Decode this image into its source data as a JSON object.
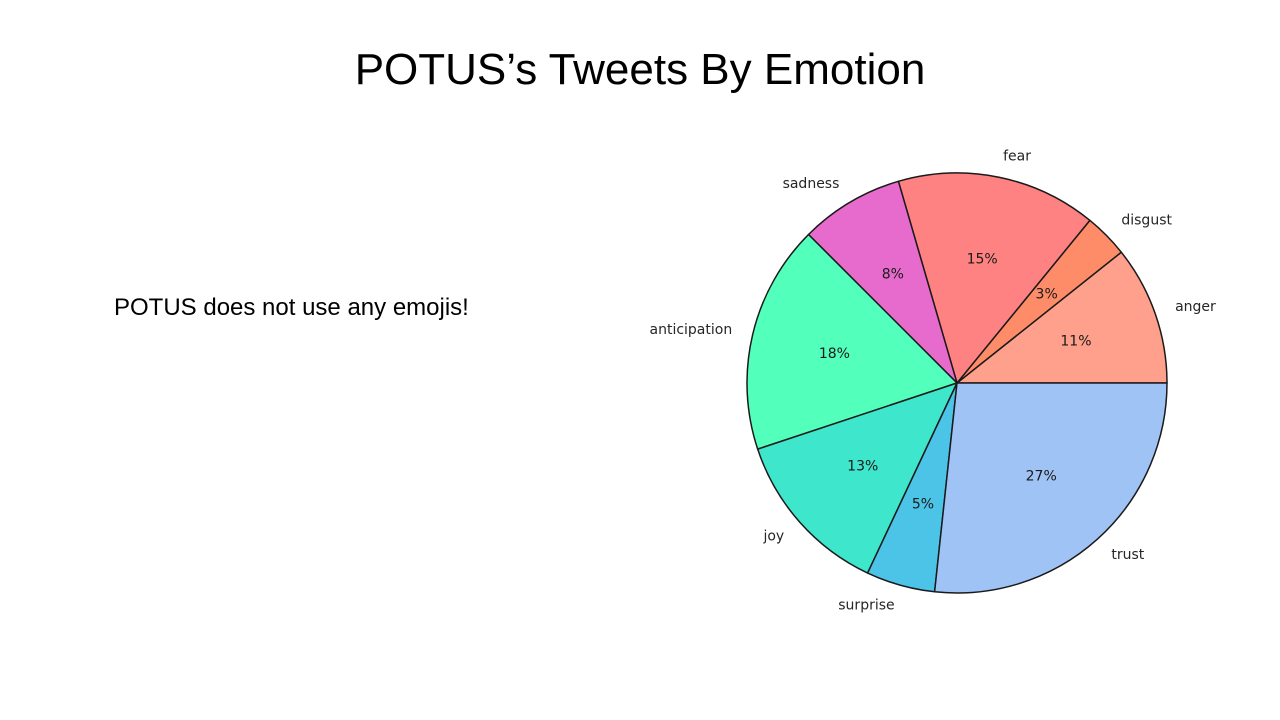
{
  "slide": {
    "title": "POTUS’s Tweets By Emotion",
    "body_text": "POTUS does not use any emojis!"
  },
  "chart_data": {
    "type": "pie",
    "start_angle_deg": 0,
    "direction": "counterclockwise",
    "slices": [
      {
        "label": "anger",
        "pct_label": "11%",
        "value": 10.7,
        "color": "#ffa08c"
      },
      {
        "label": "disgust",
        "pct_label": "3%",
        "value": 3.4,
        "color": "#ff8c69"
      },
      {
        "label": "fear",
        "pct_label": "15%",
        "value": 15.4,
        "color": "#ff8282"
      },
      {
        "label": "sadness",
        "pct_label": "8%",
        "value": 8.0,
        "color": "#e76bcc"
      },
      {
        "label": "anticipation",
        "pct_label": "18%",
        "value": 17.6,
        "color": "#52ffbb"
      },
      {
        "label": "joy",
        "pct_label": "13%",
        "value": 12.9,
        "color": "#3ee6cc"
      },
      {
        "label": "surprise",
        "pct_label": "5%",
        "value": 5.3,
        "color": "#4bc4e8"
      },
      {
        "label": "trust",
        "pct_label": "27%",
        "value": 26.7,
        "color": "#9fc3f5"
      }
    ]
  }
}
